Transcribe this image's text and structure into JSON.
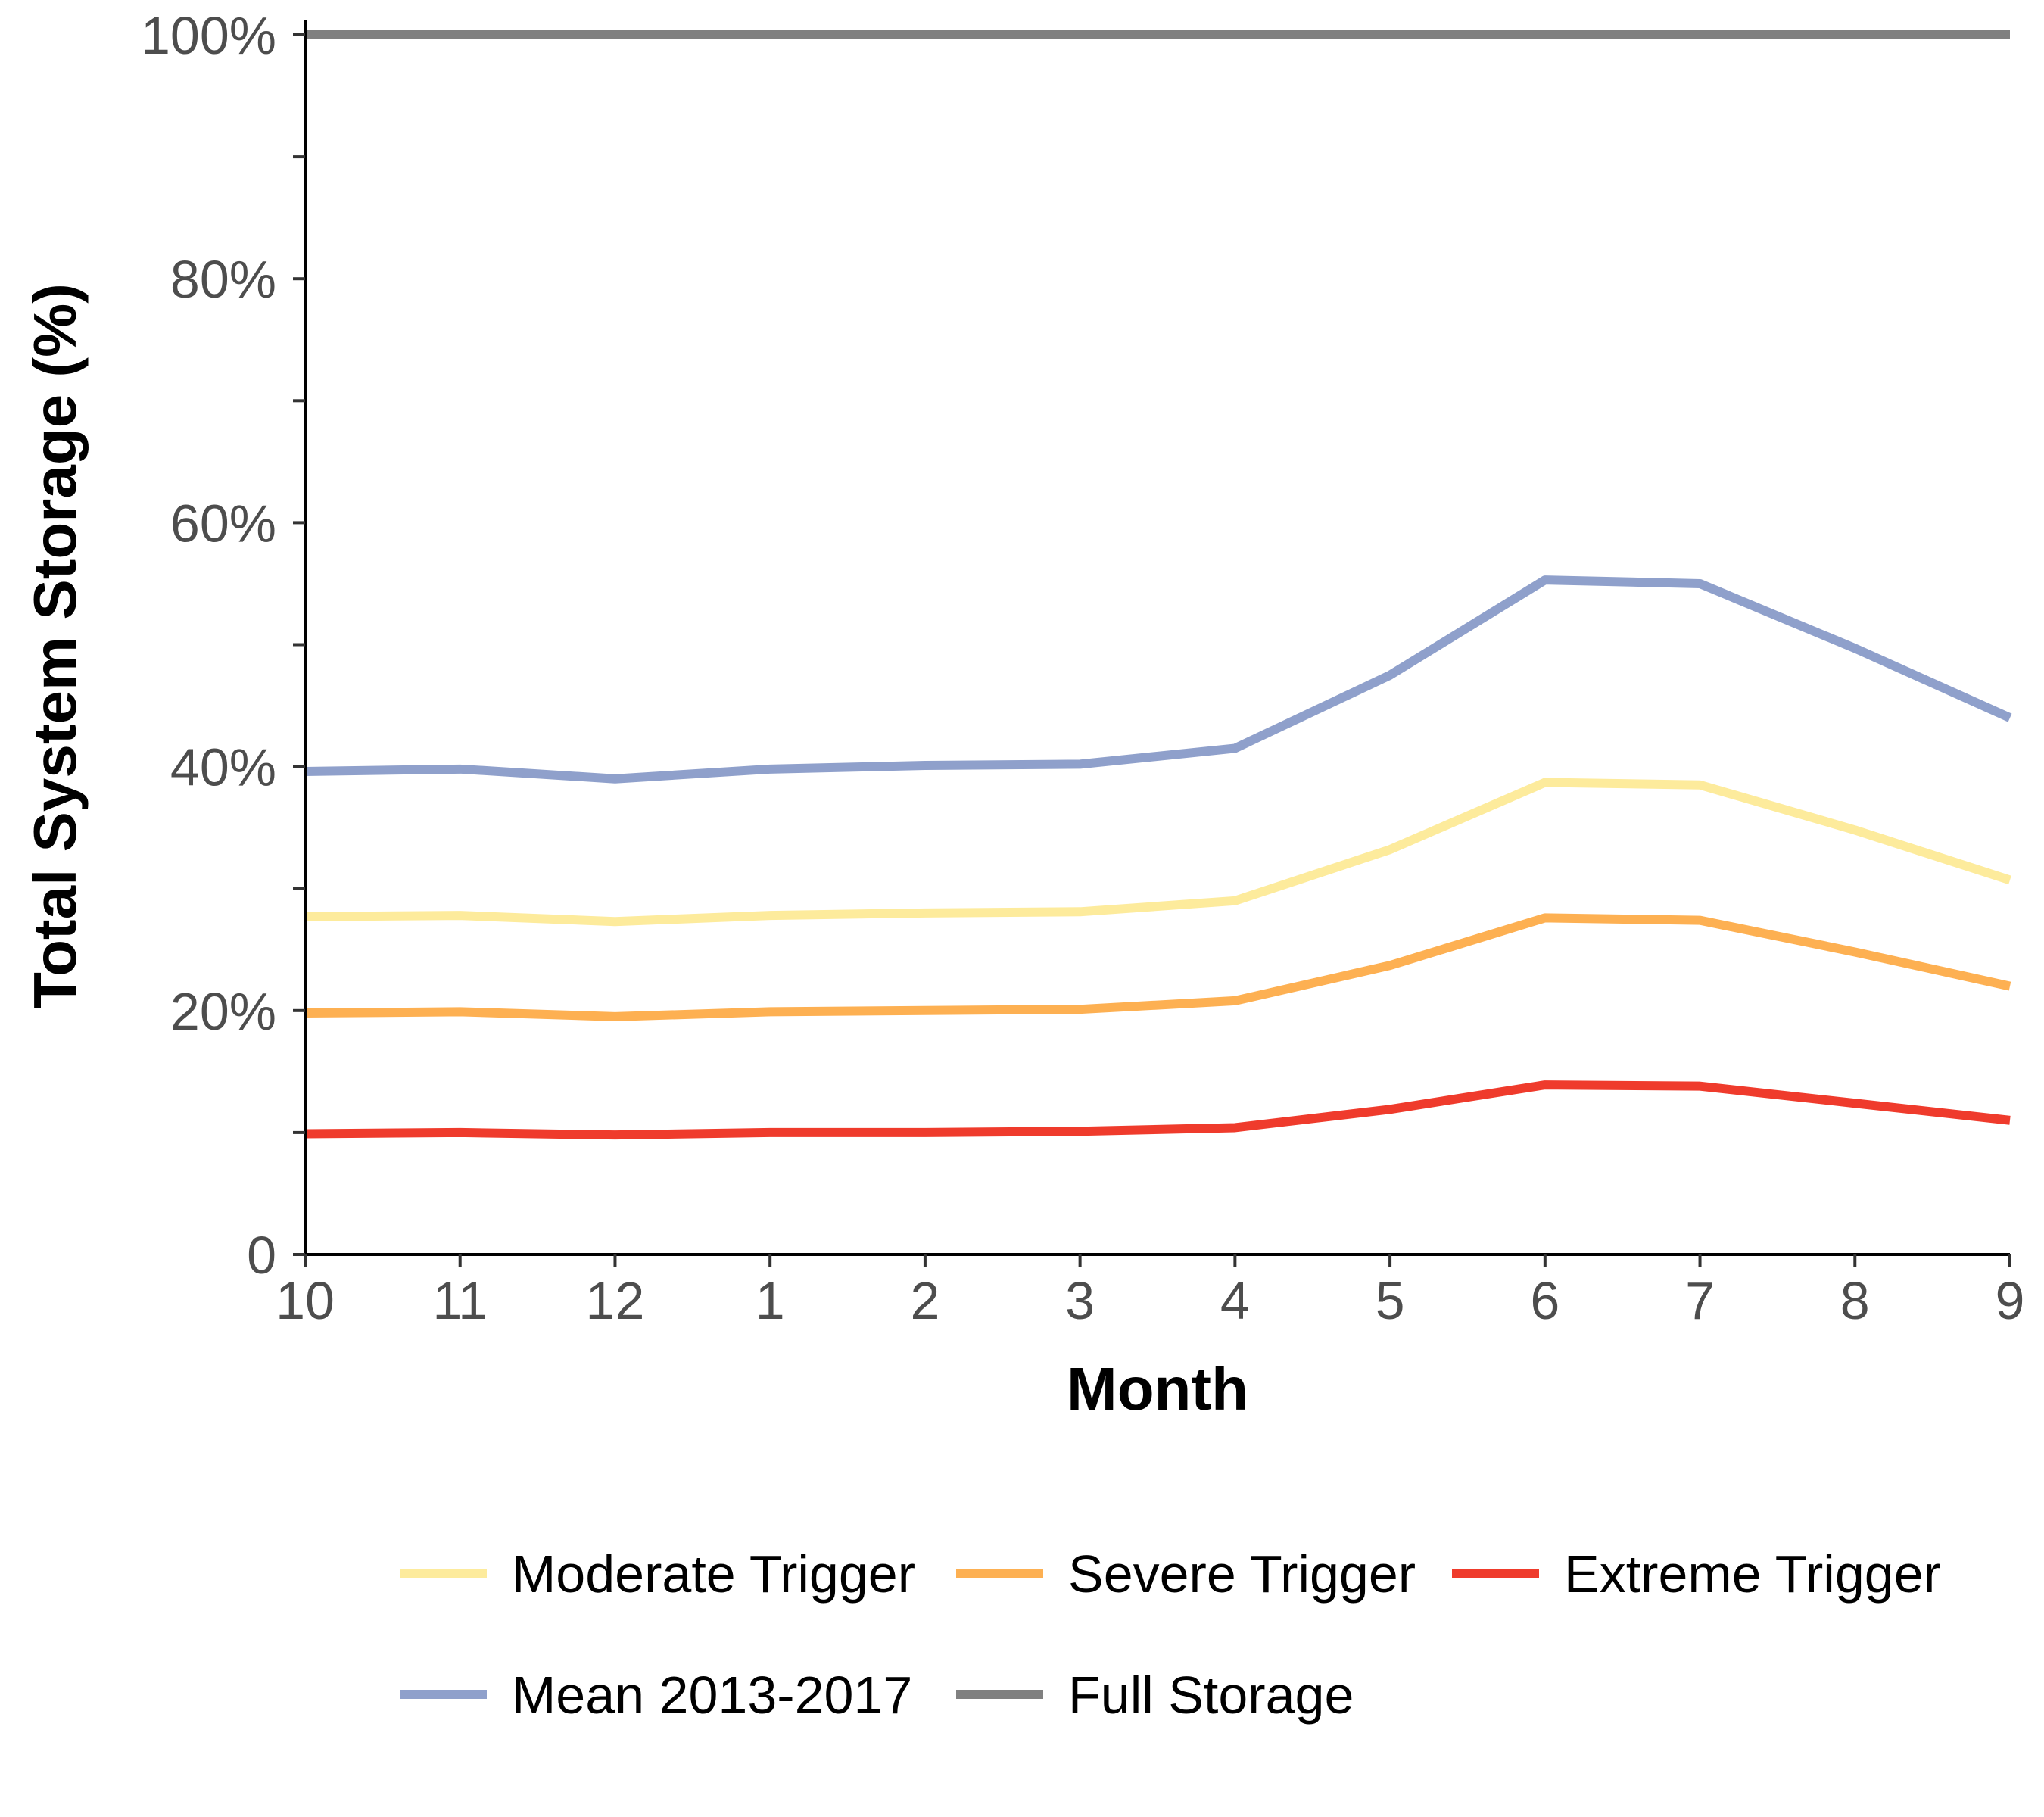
{
  "chart_data": {
    "type": "line",
    "title": "",
    "xlabel": "Month",
    "ylabel": "Total System Storage (%)",
    "categories": [
      "10",
      "11",
      "12",
      "1",
      "2",
      "3",
      "4",
      "5",
      "6",
      "7",
      "8",
      "9"
    ],
    "ylim": [
      0,
      100
    ],
    "yticks": [
      0,
      20,
      40,
      60,
      80,
      100
    ],
    "ytick_labels": [
      "0",
      "20%",
      "40%",
      "60%",
      "80%",
      "100%"
    ],
    "grid": false,
    "legend_position": "bottom",
    "series": [
      {
        "name": "Moderate Trigger",
        "color": "#FDEB9C",
        "values": [
          27.7,
          27.8,
          27.3,
          27.8,
          28.0,
          28.1,
          29.0,
          33.2,
          38.7,
          38.5,
          34.8,
          30.7
        ]
      },
      {
        "name": "Severe Trigger",
        "color": "#FDB052",
        "values": [
          19.8,
          19.9,
          19.5,
          19.9,
          20.0,
          20.1,
          20.8,
          23.7,
          27.6,
          27.4,
          24.8,
          22.0
        ]
      },
      {
        "name": "Extreme Trigger",
        "color": "#EF3B2C",
        "values": [
          9.9,
          10.0,
          9.8,
          10.0,
          10.0,
          10.1,
          10.4,
          11.9,
          13.9,
          13.8,
          12.4,
          11.0
        ]
      },
      {
        "name": "Mean 2013-2017",
        "color": "#8FA0CB",
        "values": [
          39.6,
          39.8,
          39.0,
          39.8,
          40.1,
          40.2,
          41.5,
          47.5,
          55.3,
          55.0,
          49.7,
          44.0
        ]
      },
      {
        "name": "Full Storage",
        "color": "#808080",
        "values": [
          100,
          100,
          100,
          100,
          100,
          100,
          100,
          100,
          100,
          100,
          100,
          100
        ]
      }
    ]
  }
}
